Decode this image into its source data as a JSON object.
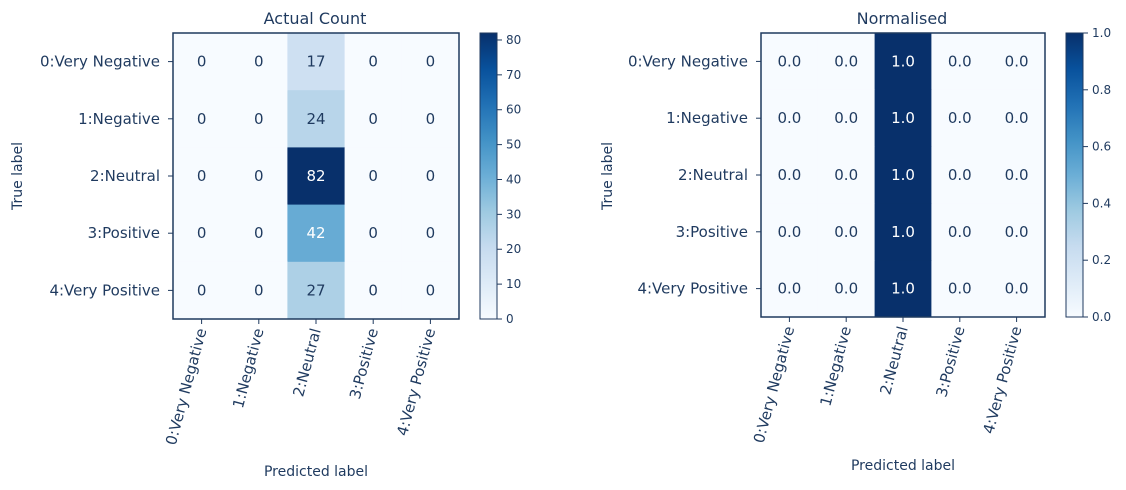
{
  "chart_data": [
    {
      "type": "heatmap",
      "title": "Actual Count",
      "xlabel": "Predicted label",
      "ylabel": "True label",
      "x_categories": [
        "0:Very Negative",
        "1:Negative",
        "2:Neutral",
        "3:Positive",
        "4:Very Positive"
      ],
      "y_categories": [
        "0:Very Negative",
        "1:Negative",
        "2:Neutral",
        "3:Positive",
        "4:Very Positive"
      ],
      "values": [
        [
          0,
          0,
          17,
          0,
          0
        ],
        [
          0,
          0,
          24,
          0,
          0
        ],
        [
          0,
          0,
          82,
          0,
          0
        ],
        [
          0,
          0,
          42,
          0,
          0
        ],
        [
          0,
          0,
          27,
          0,
          0
        ]
      ],
      "value_labels": [
        [
          "0",
          "0",
          "17",
          "0",
          "0"
        ],
        [
          "0",
          "0",
          "24",
          "0",
          "0"
        ],
        [
          "0",
          "0",
          "82",
          "0",
          "0"
        ],
        [
          "0",
          "0",
          "42",
          "0",
          "0"
        ],
        [
          "0",
          "0",
          "27",
          "0",
          "0"
        ]
      ],
      "colorbar": {
        "min": 0,
        "max": 82,
        "ticks": [
          0,
          10,
          20,
          30,
          40,
          50,
          60,
          70,
          80
        ],
        "tick_labels": [
          "0",
          "10",
          "20",
          "30",
          "40",
          "50",
          "60",
          "70",
          "80"
        ]
      },
      "colormap": "Blues"
    },
    {
      "type": "heatmap",
      "title": "Normalised",
      "xlabel": "Predicted label",
      "ylabel": "True label",
      "x_categories": [
        "0:Very Negative",
        "1:Negative",
        "2:Neutral",
        "3:Positive",
        "4:Very Positive"
      ],
      "y_categories": [
        "0:Very Negative",
        "1:Negative",
        "2:Neutral",
        "3:Positive",
        "4:Very Positive"
      ],
      "values": [
        [
          0.0,
          0.0,
          1.0,
          0.0,
          0.0
        ],
        [
          0.0,
          0.0,
          1.0,
          0.0,
          0.0
        ],
        [
          0.0,
          0.0,
          1.0,
          0.0,
          0.0
        ],
        [
          0.0,
          0.0,
          1.0,
          0.0,
          0.0
        ],
        [
          0.0,
          0.0,
          1.0,
          0.0,
          0.0
        ]
      ],
      "value_labels": [
        [
          "0.0",
          "0.0",
          "1.0",
          "0.0",
          "0.0"
        ],
        [
          "0.0",
          "0.0",
          "1.0",
          "0.0",
          "0.0"
        ],
        [
          "0.0",
          "0.0",
          "1.0",
          "0.0",
          "0.0"
        ],
        [
          "0.0",
          "0.0",
          "1.0",
          "0.0",
          "0.0"
        ],
        [
          "0.0",
          "0.0",
          "1.0",
          "0.0",
          "0.0"
        ]
      ],
      "colorbar": {
        "min": 0.0,
        "max": 1.0,
        "ticks": [
          0.0,
          0.2,
          0.4,
          0.6,
          0.8,
          1.0
        ],
        "tick_labels": [
          "0.0",
          "0.2",
          "0.4",
          "0.6",
          "0.8",
          "1.0"
        ]
      },
      "colormap": "Blues"
    }
  ],
  "colors": {
    "cmap_stops": [
      "#f7fbff",
      "#deebf7",
      "#c6dbef",
      "#9ecae1",
      "#6baed6",
      "#4292c6",
      "#2171b5",
      "#08519c",
      "#08306b"
    ],
    "text_dark": "#1f3a5f",
    "text_light": "#ffffff",
    "frame": "#1f3a5f"
  }
}
